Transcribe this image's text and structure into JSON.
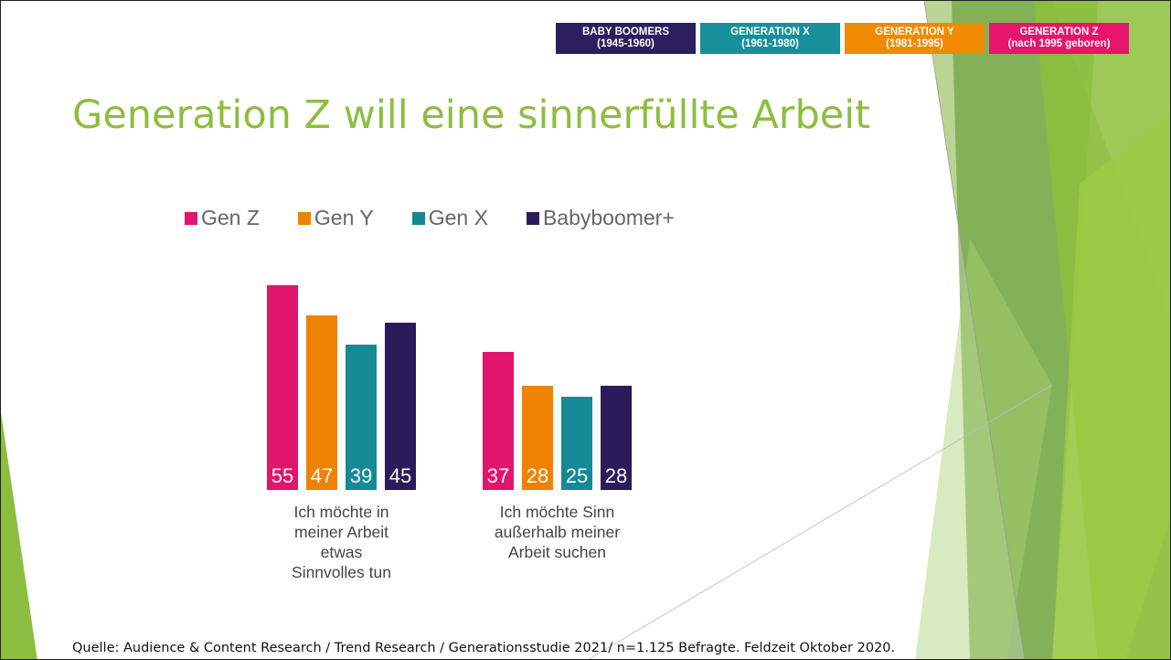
{
  "header": [
    {
      "title": "BABY BOOMERS",
      "years": "(1945-1960)",
      "color": "#2b1f5e"
    },
    {
      "title": "GENERATION X",
      "years": "(1961-1980)",
      "color": "#16909b"
    },
    {
      "title": "GENERATION Y",
      "years": "(1981-1995)",
      "color": "#f08a00"
    },
    {
      "title": "GENERATION Z",
      "years": "(nach 1995 geboren)",
      "color": "#e6156b"
    }
  ],
  "chart_data": {
    "type": "bar",
    "title": "Generation Z will eine sinnerfüllte Arbeit",
    "categories": [
      "Ich möchte in meiner Arbeit etwas Sinnvolles tun",
      "Ich möchte Sinn außerhalb meiner Arbeit suchen"
    ],
    "series": [
      {
        "name": "Gen Z",
        "color": "#e0156b",
        "values": [
          55,
          37
        ]
      },
      {
        "name": "Gen Y",
        "color": "#ef8200",
        "values": [
          47,
          28
        ]
      },
      {
        "name": "Gen X",
        "color": "#138a96",
        "values": [
          39,
          25
        ]
      },
      {
        "name": "Babyboomer+",
        "color": "#2a1b5b",
        "values": [
          45,
          28
        ]
      }
    ]
  },
  "source": "Quelle: Audience & Content Research / Trend Research / Generationsstudie 2021/ n=1.125 Befragte. Feldzeit Oktober 2020."
}
